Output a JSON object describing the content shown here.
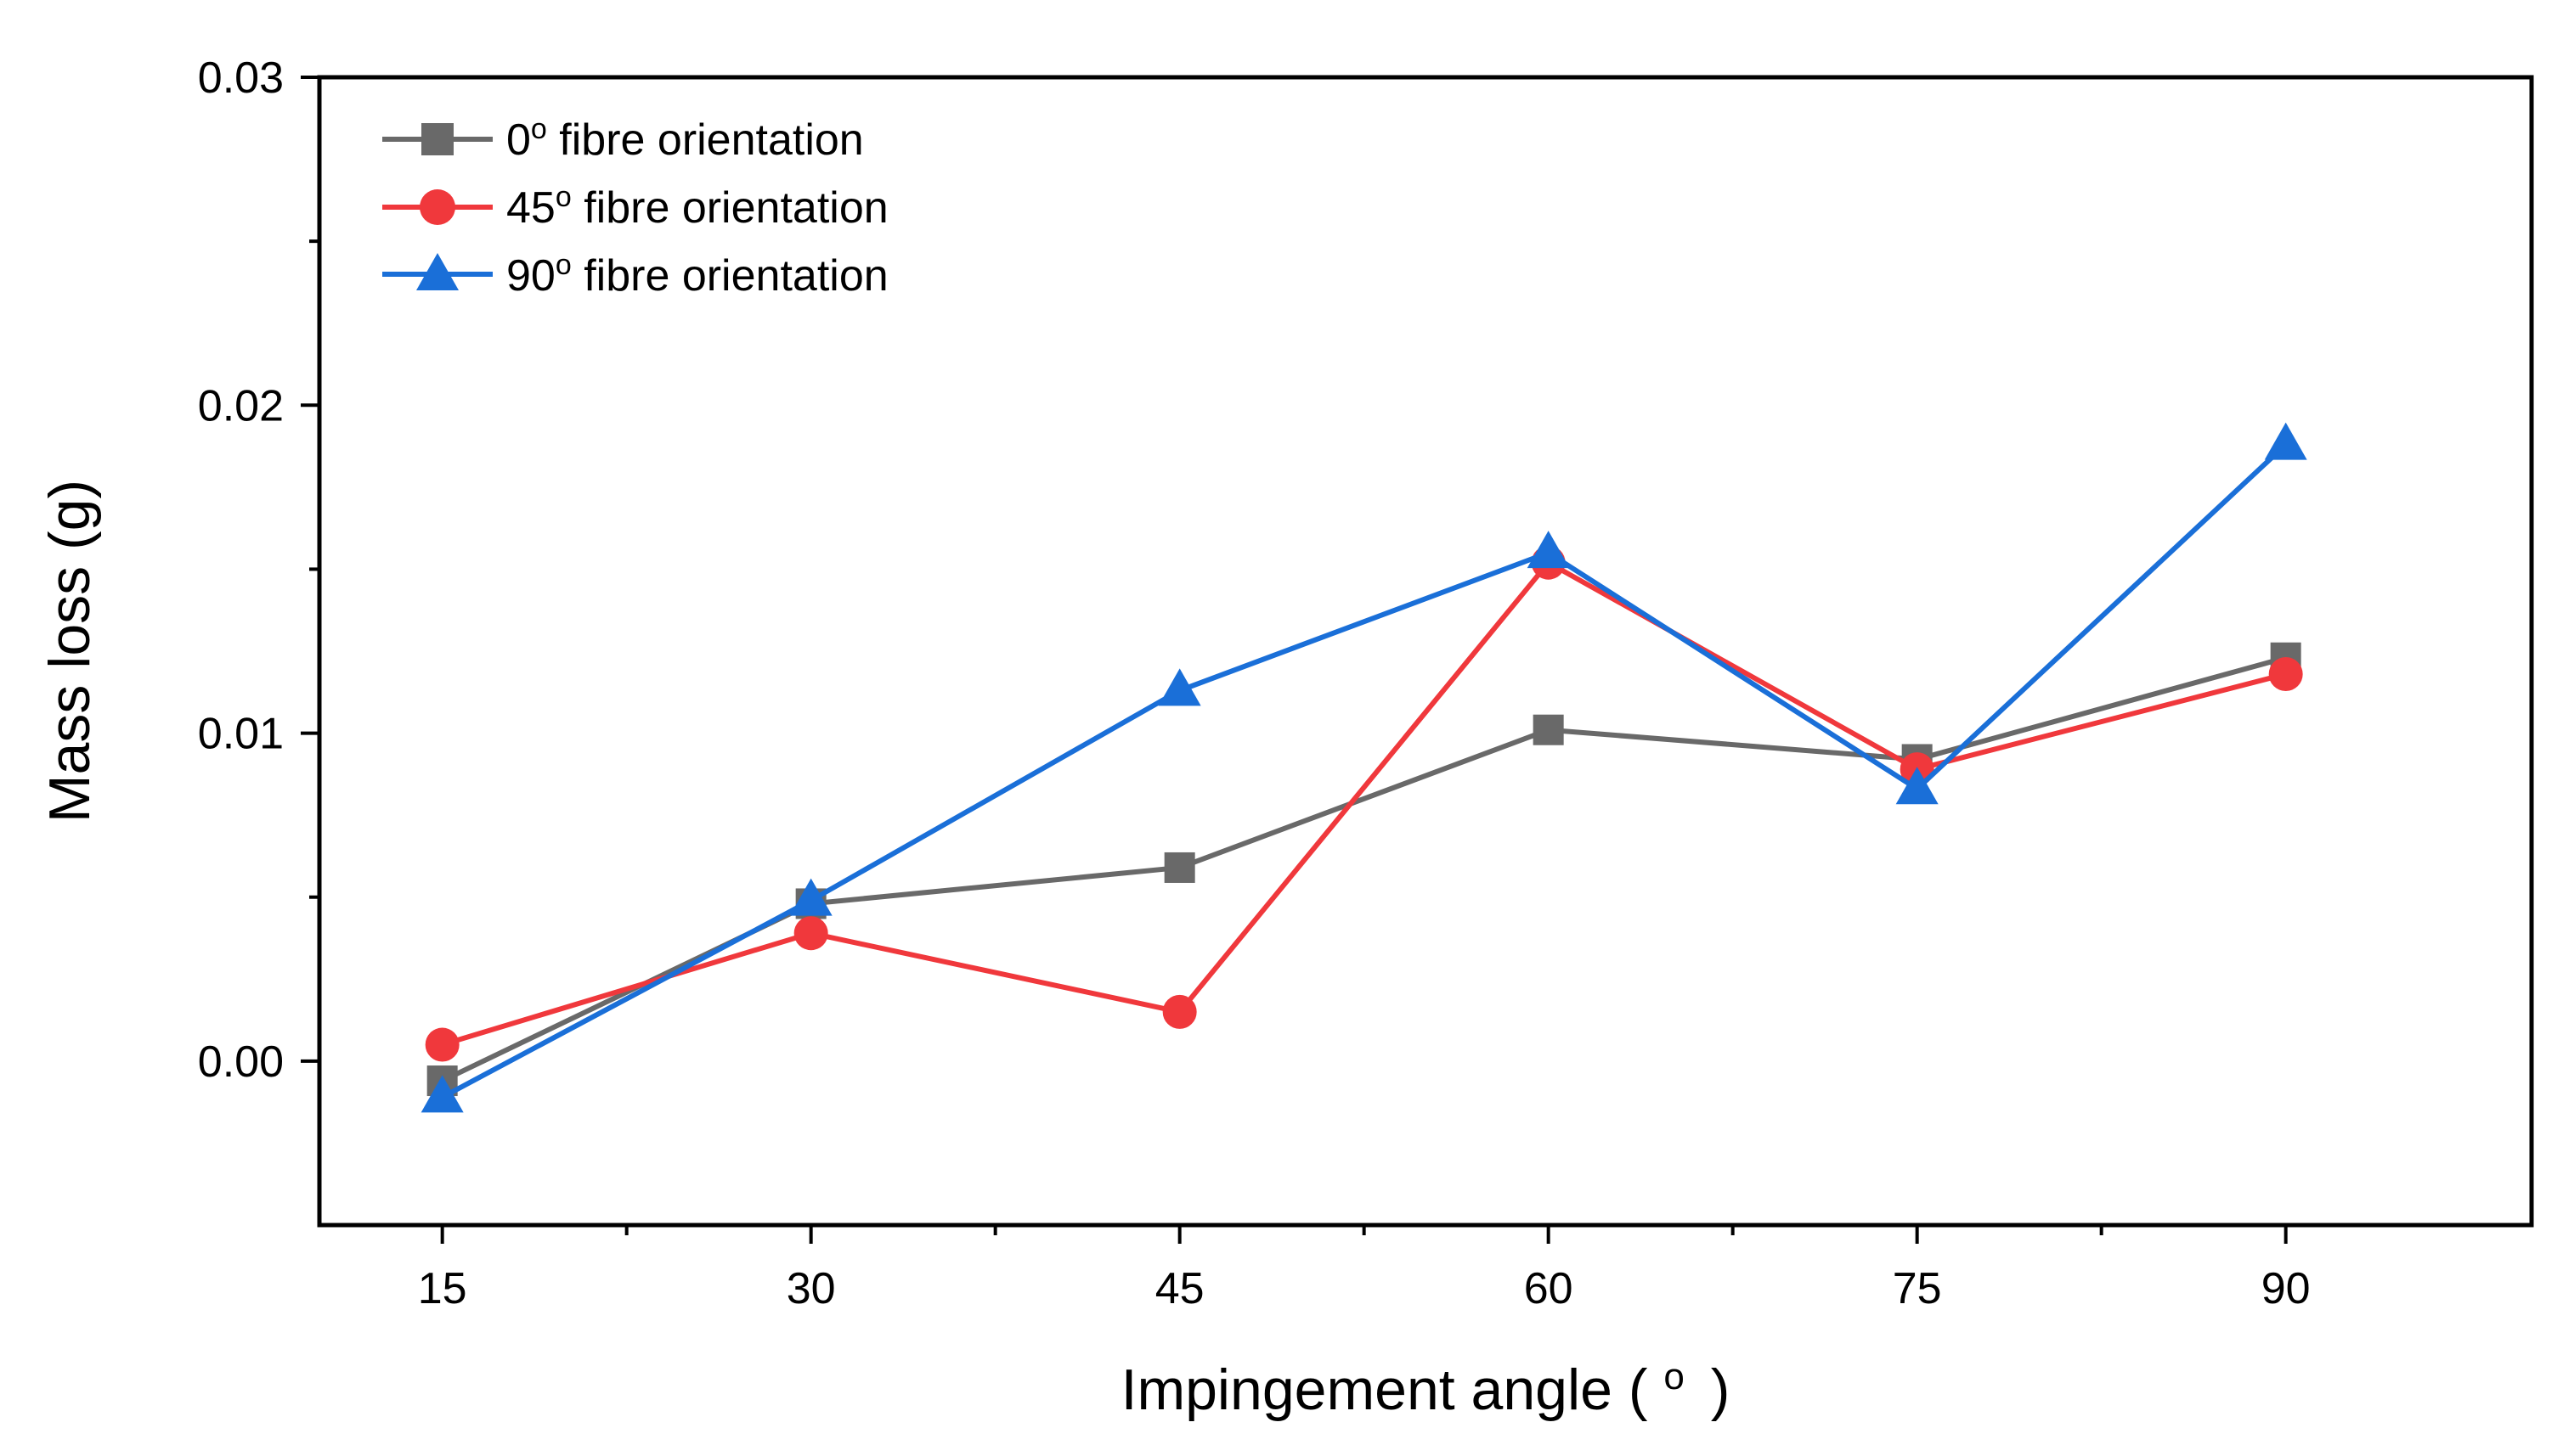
{
  "chart_data": {
    "type": "line",
    "title": "",
    "xlabel": "Impingement angle ( o )",
    "xlabel_main": "Impingement angle (",
    "xlabel_degree": "o",
    "xlabel_close": ")",
    "ylabel": "Mass loss (g)",
    "xlim": [
      10,
      100
    ],
    "ylim": [
      -0.005,
      0.03
    ],
    "x": [
      15,
      30,
      45,
      60,
      75,
      90
    ],
    "x_tick_labels": [
      "15",
      "30",
      "45",
      "60",
      "75",
      "90"
    ],
    "y_ticks": [
      0.0,
      0.01,
      0.02,
      0.03
    ],
    "y_tick_labels": [
      "0.00",
      "0.01",
      "0.02",
      "0.03"
    ],
    "legend_position": "top-left",
    "grid": false,
    "series": [
      {
        "name": "0o fibre orientation",
        "label_prefix": "0",
        "label_degree": "o",
        "label_suffix": " fibre orientation",
        "marker": "square",
        "color": "#696969",
        "values": [
          -0.0006,
          0.0048,
          0.0059,
          0.0101,
          0.0092,
          0.0123
        ]
      },
      {
        "name": "45o fibre orientation",
        "label_prefix": "45",
        "label_degree": "o",
        "label_suffix": " fibre orientation",
        "marker": "circle",
        "color": "#f0383c",
        "values": [
          0.0005,
          0.0039,
          0.0015,
          0.0152,
          0.0089,
          0.0118
        ]
      },
      {
        "name": "90o fibre orientation",
        "label_prefix": "90",
        "label_degree": "o",
        "label_suffix": " fibre orientation",
        "marker": "triangle",
        "color": "#1a6fd8",
        "values": [
          -0.0011,
          0.0049,
          0.0113,
          0.0155,
          0.0083,
          0.0188
        ]
      }
    ]
  }
}
